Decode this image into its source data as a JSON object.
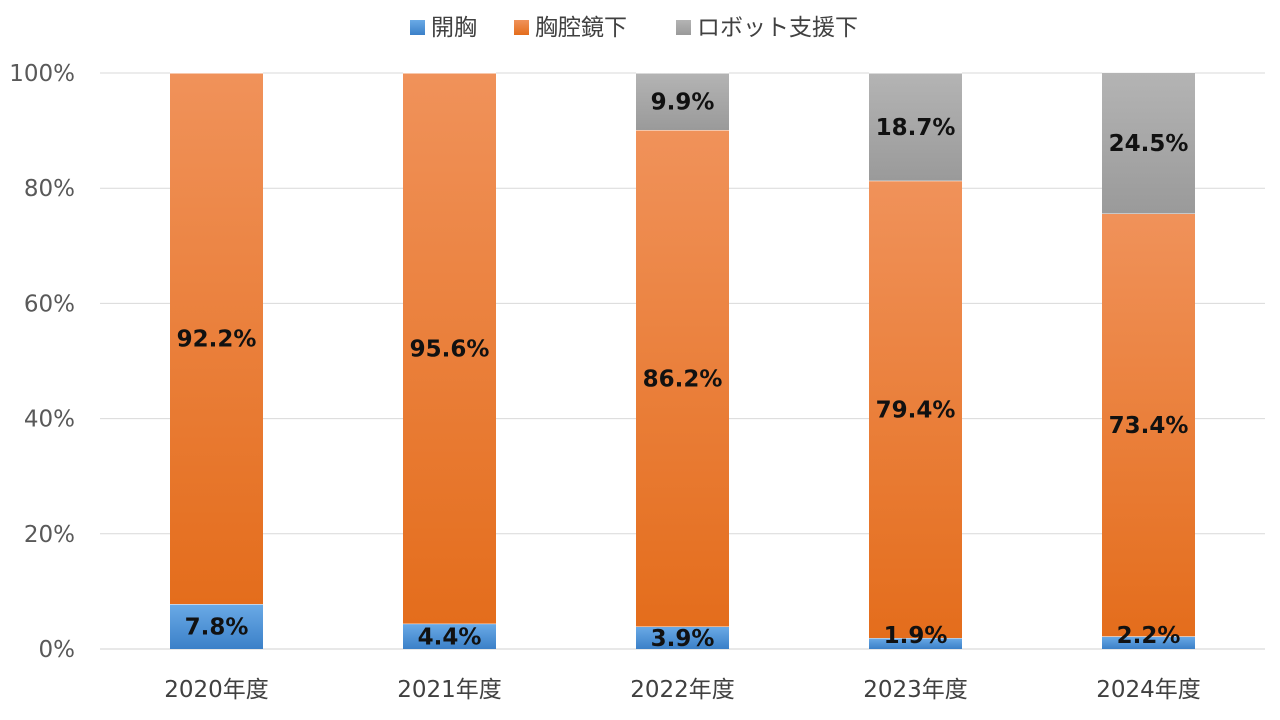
{
  "chart_data": {
    "type": "bar",
    "stacked": true,
    "percent_stacked": true,
    "categories": [
      "2020年度",
      "2021年度",
      "2022年度",
      "2023年度",
      "2024年度"
    ],
    "series": [
      {
        "name": "開胸",
        "values": [
          7.8,
          4.4,
          3.9,
          1.9,
          2.2
        ],
        "labels": [
          "7.8%",
          "4.4%",
          "3.9%",
          "1.9%",
          "2.2%"
        ],
        "color": "#4f93d6"
      },
      {
        "name": "胸腔鏡下",
        "values": [
          92.2,
          95.6,
          86.2,
          79.4,
          73.4
        ],
        "labels": [
          "92.2%",
          "95.6%",
          "86.2%",
          "79.4%",
          "73.4%"
        ],
        "color": "#ed7d31"
      },
      {
        "name": "ロボット支援下",
        "values": [
          0,
          0,
          9.9,
          18.7,
          24.5
        ],
        "labels": [
          "",
          "",
          "9.9%",
          "18.7%",
          "24.5%"
        ],
        "color": "#a5a5a5"
      }
    ],
    "ylim": [
      0,
      100
    ],
    "yticks": [
      "0%",
      "20%",
      "40%",
      "60%",
      "80%",
      "100%"
    ],
    "grid": true,
    "legend": "top"
  }
}
